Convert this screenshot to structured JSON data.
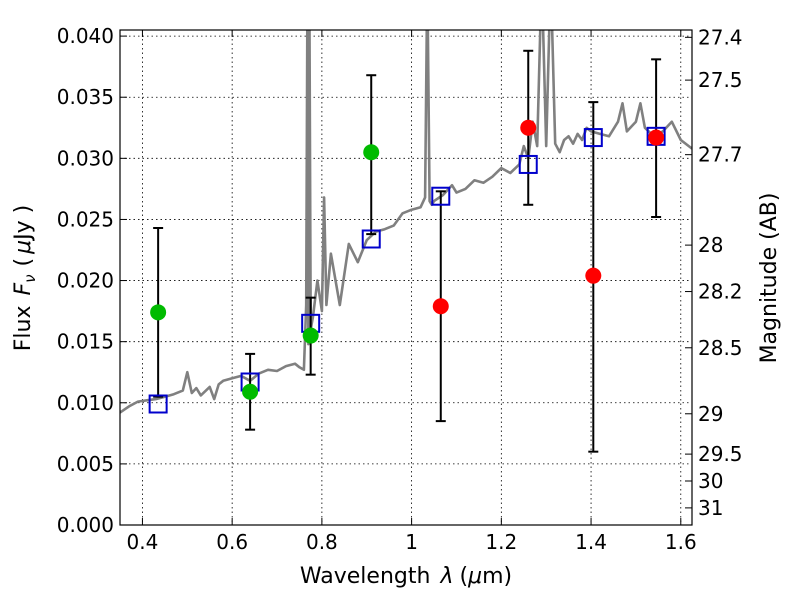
{
  "chart_data": {
    "type": "scatter",
    "title": "",
    "xlabel_text": "Wavelength",
    "xlabel_symbol": "λ",
    "xlabel_unit_open": "(",
    "xlabel_unit_mu": "μ",
    "xlabel_unit_rest": "m)",
    "ylabel_text": "Flux",
    "ylabel_symbol": "F",
    "ylabel_subscript": "ν",
    "ylabel_unit_open": "(",
    "ylabel_unit_mu": "μ",
    "ylabel_unit_rest": "Jy )",
    "y2label": "Magnitude (AB)",
    "xlim": [
      0.35,
      1.625
    ],
    "ylim": [
      0.0,
      0.0405
    ],
    "grid": true,
    "x_ticks": [
      0.4,
      0.6,
      0.8,
      1.0,
      1.2,
      1.4,
      1.6
    ],
    "x_tick_labels": [
      "0.4",
      "0.6",
      "0.8",
      "1",
      "1.2",
      "1.4",
      "1.6"
    ],
    "y_ticks": [
      0.0,
      0.005,
      0.01,
      0.015,
      0.02,
      0.025,
      0.03,
      0.035,
      0.04
    ],
    "y_tick_labels": [
      "0.000",
      "0.005",
      "0.010",
      "0.015",
      "0.020",
      "0.025",
      "0.030",
      "0.035",
      "0.040"
    ],
    "y2_ticks": [
      {
        "label": "27.4",
        "flux": 0.0399
      },
      {
        "label": "27.5",
        "flux": 0.0364
      },
      {
        "label": "27.7",
        "flux": 0.0303
      },
      {
        "label": "28",
        "flux": 0.0229
      },
      {
        "label": "28.2",
        "flux": 0.0191
      },
      {
        "label": "28.5",
        "flux": 0.0145
      },
      {
        "label": "29",
        "flux": 0.0091
      },
      {
        "label": "29.5",
        "flux": 0.0058
      },
      {
        "label": "30",
        "flux": 0.0036
      },
      {
        "label": "31",
        "flux": 0.0014
      }
    ],
    "colors": {
      "spectrum": "#808080",
      "green": "#00bb00",
      "red": "#ff0000",
      "model_box": "#0000cc",
      "errorbar": "#000000"
    },
    "spectrum": {
      "name": "",
      "x": [
        0.35,
        0.37,
        0.39,
        0.41,
        0.43,
        0.45,
        0.47,
        0.49,
        0.5,
        0.51,
        0.52,
        0.53,
        0.55,
        0.56,
        0.57,
        0.58,
        0.6,
        0.62,
        0.64,
        0.66,
        0.68,
        0.7,
        0.72,
        0.74,
        0.75,
        0.76,
        0.765,
        0.768,
        0.77,
        0.772,
        0.775,
        0.78,
        0.79,
        0.8,
        0.805,
        0.81,
        0.82,
        0.84,
        0.86,
        0.88,
        0.9,
        0.92,
        0.94,
        0.96,
        0.98,
        1.0,
        1.02,
        1.03,
        1.035,
        1.04,
        1.045,
        1.05,
        1.07,
        1.09,
        1.1,
        1.12,
        1.14,
        1.16,
        1.18,
        1.2,
        1.22,
        1.24,
        1.25,
        1.26,
        1.27,
        1.28,
        1.29,
        1.3,
        1.31,
        1.32,
        1.33,
        1.34,
        1.35,
        1.36,
        1.37,
        1.38,
        1.39,
        1.4,
        1.42,
        1.44,
        1.46,
        1.47,
        1.48,
        1.5,
        1.51,
        1.52,
        1.54,
        1.56,
        1.58,
        1.6,
        1.625
      ],
      "y": [
        0.0092,
        0.0097,
        0.0101,
        0.0102,
        0.0103,
        0.0105,
        0.0107,
        0.011,
        0.0125,
        0.0108,
        0.0112,
        0.0106,
        0.0113,
        0.0103,
        0.0115,
        0.0118,
        0.012,
        0.0122,
        0.0118,
        0.0124,
        0.0127,
        0.0126,
        0.013,
        0.0132,
        0.0129,
        0.0127,
        0.018,
        0.045,
        0.0148,
        0.045,
        0.016,
        0.017,
        0.02,
        0.0175,
        0.0268,
        0.018,
        0.0222,
        0.018,
        0.023,
        0.0215,
        0.0233,
        0.024,
        0.0242,
        0.0245,
        0.0255,
        0.0258,
        0.026,
        0.0268,
        0.045,
        0.0265,
        0.0262,
        0.0265,
        0.027,
        0.0278,
        0.0272,
        0.0275,
        0.0282,
        0.028,
        0.0285,
        0.0292,
        0.0288,
        0.0295,
        0.031,
        0.03,
        0.033,
        0.031,
        0.045,
        0.031,
        0.045,
        0.0312,
        0.0305,
        0.0315,
        0.0318,
        0.0312,
        0.032,
        0.0315,
        0.0325,
        0.0322,
        0.032,
        0.0318,
        0.033,
        0.0345,
        0.0322,
        0.033,
        0.0345,
        0.0325,
        0.0318,
        0.0322,
        0.033,
        0.0315,
        0.0308
      ]
    },
    "series": [
      {
        "name": "",
        "marker": "circle",
        "color": "#00bb00",
        "points": [
          {
            "x": 0.435,
            "y": 0.0174,
            "err_low": 0.0105,
            "err_high": 0.0243
          },
          {
            "x": 0.64,
            "y": 0.0109,
            "err_low": 0.0078,
            "err_high": 0.014
          },
          {
            "x": 0.775,
            "y": 0.0155,
            "err_low": 0.0123,
            "err_high": 0.0186
          },
          {
            "x": 0.91,
            "y": 0.0305,
            "err_low": 0.0238,
            "err_high": 0.0368
          }
        ]
      },
      {
        "name": "",
        "marker": "circle",
        "color": "#ff0000",
        "points": [
          {
            "x": 1.065,
            "y": 0.0179,
            "err_low": 0.0085,
            "err_high": 0.0273
          },
          {
            "x": 1.26,
            "y": 0.0325,
            "err_low": 0.0262,
            "err_high": 0.0388
          },
          {
            "x": 1.405,
            "y": 0.0204,
            "err_low": 0.006,
            "err_high": 0.0346
          },
          {
            "x": 1.545,
            "y": 0.0317,
            "err_low": 0.0252,
            "err_high": 0.0381
          }
        ]
      },
      {
        "name": "",
        "marker": "square",
        "color": "#0000cc",
        "points": [
          {
            "x": 0.435,
            "y": 0.0099
          },
          {
            "x": 0.64,
            "y": 0.0117
          },
          {
            "x": 0.775,
            "y": 0.0165
          },
          {
            "x": 0.91,
            "y": 0.0234
          },
          {
            "x": 1.065,
            "y": 0.0269
          },
          {
            "x": 1.26,
            "y": 0.0295
          },
          {
            "x": 1.405,
            "y": 0.0317
          },
          {
            "x": 1.545,
            "y": 0.0318
          }
        ]
      }
    ]
  }
}
